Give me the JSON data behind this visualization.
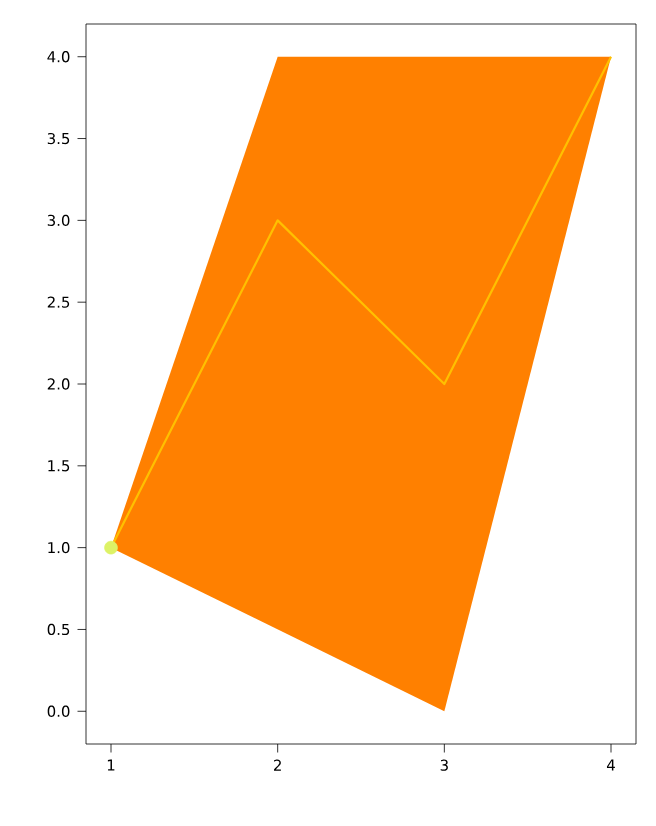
{
  "chart_data": {
    "type": "line",
    "xlim": [
      0.85,
      4.15
    ],
    "ylim": [
      -0.2,
      4.2
    ],
    "xticks": [
      1,
      2,
      3,
      4
    ],
    "yticks": [
      {
        "value": 0,
        "label": "0.0"
      },
      {
        "value": 0.5,
        "label": "0.5"
      },
      {
        "value": 1,
        "label": "1.0"
      },
      {
        "value": 1.5,
        "label": "1.5"
      },
      {
        "value": 2,
        "label": "2.0"
      },
      {
        "value": 2.5,
        "label": "2.5"
      },
      {
        "value": 3,
        "label": "3.0"
      },
      {
        "value": 3.5,
        "label": "3.5"
      },
      {
        "value": 4,
        "label": "4.0"
      }
    ],
    "series": [
      {
        "type": "area",
        "color": "#ff8000",
        "x": [
          1,
          2,
          4,
          3
        ],
        "values": [
          1,
          4,
          4,
          0
        ]
      },
      {
        "color": "#ffc000",
        "x": [
          1,
          2,
          3,
          4
        ],
        "values": [
          1,
          3,
          2,
          4
        ]
      },
      {
        "type": "scatter",
        "color": "#ddf266",
        "x": [
          1
        ],
        "values": [
          1
        ]
      }
    ]
  }
}
